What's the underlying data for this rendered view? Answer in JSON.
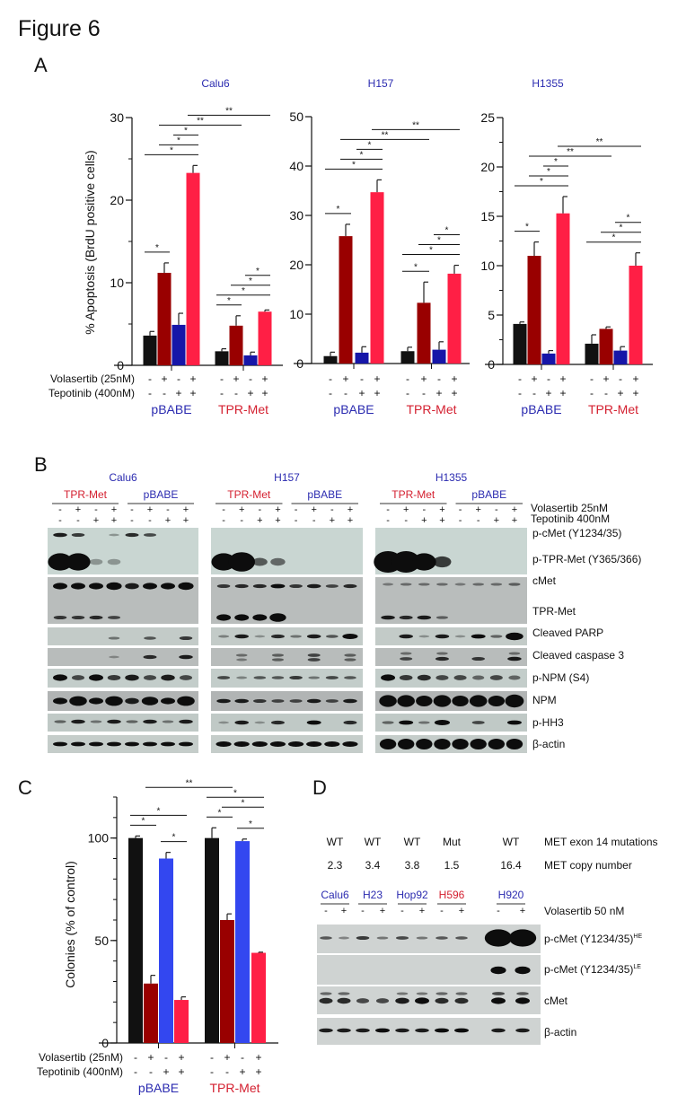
{
  "figure_title": "Figure 6",
  "panel_labels": {
    "A": "A",
    "B": "B",
    "C": "C",
    "D": "D"
  },
  "colors": {
    "black": "#111111",
    "darkred": "#990000",
    "blue": "#1616a8",
    "red": "#ff1f45",
    "blue_c": "#3347f0",
    "label_blue": "#2b2bb0",
    "label_red": "#d42030"
  },
  "treatments": {
    "volasertib_label": "Volasertib (25nM)",
    "tepotinib_label": "Tepotinib (400nM)",
    "volasertib": [
      "-",
      "+",
      "-",
      "+"
    ],
    "tepotinib": [
      "-",
      "-",
      "+",
      "+"
    ]
  },
  "chart_data": [
    {
      "type": "bar",
      "panel": "A",
      "title": "Calu6",
      "ylabel": "% Apoptosis (BrdU positive cells)",
      "ylim": [
        0,
        30
      ],
      "yticks": [
        0,
        10,
        20,
        30
      ],
      "minor_step": 5,
      "groups": [
        "pBABE",
        "TPR-Met"
      ],
      "values": [
        [
          3.6,
          11.2,
          4.9,
          23.3
        ],
        [
          1.7,
          4.8,
          1.2,
          6.5
        ]
      ],
      "errors": [
        [
          0.5,
          1.2,
          1.4,
          0.9
        ],
        [
          0.3,
          1.2,
          0.4,
          0.2
        ]
      ],
      "annotations": [
        {
          "from": 0,
          "to": 1,
          "label": "*"
        },
        {
          "from": 0,
          "to": 3,
          "label": "*"
        },
        {
          "from": 1,
          "to": 3,
          "label": "*"
        },
        {
          "from": 2,
          "to": 3,
          "label": "*"
        },
        {
          "from": 4,
          "to": 5,
          "label": "*"
        },
        {
          "from": 4,
          "to": 7,
          "label": "*"
        },
        {
          "from": 5,
          "to": 7,
          "label": "*"
        },
        {
          "from": 6,
          "to": 7,
          "label": "*"
        },
        {
          "from": 1,
          "to": 5,
          "label": "**"
        },
        {
          "from": 3,
          "to": 7,
          "label": "**"
        }
      ]
    },
    {
      "type": "bar",
      "panel": "A",
      "title": "H157",
      "ylabel": "",
      "ylim": [
        0,
        50
      ],
      "yticks": [
        0,
        10,
        20,
        30,
        40,
        50
      ],
      "minor_step": 10,
      "groups": [
        "pBABE",
        "TPR-Met"
      ],
      "values": [
        [
          1.5,
          25.8,
          2.2,
          34.7
        ],
        [
          2.5,
          12.3,
          2.8,
          18.2
        ]
      ],
      "errors": [
        [
          0.8,
          2.4,
          1.2,
          2.5
        ],
        [
          0.8,
          4.2,
          1.6,
          1.7
        ]
      ],
      "annotations": [
        {
          "from": 0,
          "to": 1,
          "label": "*"
        },
        {
          "from": 0,
          "to": 3,
          "label": "*"
        },
        {
          "from": 1,
          "to": 3,
          "label": "*"
        },
        {
          "from": 2,
          "to": 3,
          "label": "*"
        },
        {
          "from": 4,
          "to": 5,
          "label": "*"
        },
        {
          "from": 4,
          "to": 7,
          "label": "*"
        },
        {
          "from": 5,
          "to": 7,
          "label": "*"
        },
        {
          "from": 6,
          "to": 7,
          "label": "*"
        },
        {
          "from": 1,
          "to": 5,
          "label": "**"
        },
        {
          "from": 3,
          "to": 7,
          "label": "**"
        }
      ]
    },
    {
      "type": "bar",
      "panel": "A",
      "title": "H1355",
      "ylabel": "",
      "ylim": [
        0,
        25
      ],
      "yticks": [
        0,
        5,
        10,
        15,
        20,
        25
      ],
      "minor_step": 2.5,
      "groups": [
        "pBABE",
        "TPR-Met"
      ],
      "values": [
        [
          4.1,
          11.0,
          1.1,
          15.3
        ],
        [
          2.1,
          3.6,
          1.4,
          10.0
        ]
      ],
      "errors": [
        [
          0.2,
          1.4,
          0.3,
          1.7
        ],
        [
          0.9,
          0.2,
          0.4,
          1.3
        ]
      ],
      "annotations": [
        {
          "from": 0,
          "to": 1,
          "label": "*"
        },
        {
          "from": 0,
          "to": 3,
          "label": "*"
        },
        {
          "from": 1,
          "to": 3,
          "label": "*"
        },
        {
          "from": 2,
          "to": 3,
          "label": "*"
        },
        {
          "from": 4,
          "to": 7,
          "label": "*"
        },
        {
          "from": 5,
          "to": 7,
          "label": "*"
        },
        {
          "from": 6,
          "to": 7,
          "label": "*"
        },
        {
          "from": 1,
          "to": 5,
          "label": "**"
        },
        {
          "from": 3,
          "to": 7,
          "label": "**"
        }
      ]
    },
    {
      "type": "bar",
      "panel": "C",
      "title": "",
      "ylabel": "Colonies (% of control)",
      "ylim": [
        0,
        120
      ],
      "yticks": [
        0,
        50,
        100
      ],
      "minor_step": 10,
      "groups": [
        "pBABE",
        "TPR-Met"
      ],
      "values": [
        [
          100,
          29,
          90,
          21
        ],
        [
          100,
          60,
          98.5,
          44
        ]
      ],
      "errors": [
        [
          1,
          4,
          3,
          1.5
        ],
        [
          5,
          3,
          1,
          0.3
        ]
      ],
      "annotations": [
        {
          "from": 0,
          "to": 1,
          "label": "*"
        },
        {
          "from": 2,
          "to": 3,
          "label": "*"
        },
        {
          "from": 0,
          "to": 3,
          "label": "*"
        },
        {
          "from": 4,
          "to": 5,
          "label": "*"
        },
        {
          "from": 6,
          "to": 7,
          "label": "*"
        },
        {
          "from": 5,
          "to": 7,
          "label": "*"
        },
        {
          "from": 4,
          "to": 7,
          "label": "*"
        },
        {
          "from": 1,
          "to": 5,
          "label": "**"
        }
      ]
    }
  ],
  "blot_B": {
    "cell_lines": [
      {
        "name": "Calu6",
        "groups": [
          "TPR-Met",
          "pBABE"
        ]
      },
      {
        "name": "H157",
        "groups": [
          "TPR-Met",
          "pBABE"
        ]
      },
      {
        "name": "H1355",
        "groups": [
          "TPR-Met",
          "pBABE"
        ]
      }
    ],
    "volasertib": [
      "-",
      "+",
      "-",
      "+",
      "-",
      "+",
      "-",
      "+"
    ],
    "tepotinib": [
      "-",
      "-",
      "+",
      "+",
      "-",
      "-",
      "+",
      "+"
    ],
    "treatment_labels": [
      "Volasertib 25nM",
      "Tepotinib 400nM"
    ],
    "row_labels": [
      "p-cMet (Y1234/35)",
      "p-TPR-Met (Y365/366)",
      "cMet",
      "TPR-Met",
      "Cleaved PARP",
      "Cleaved caspase 3",
      "p-NPM (S4)",
      "NPM",
      "p-HH3",
      "β-actin"
    ]
  },
  "blot_D": {
    "mutation_label": "MET exon 14 mutations",
    "mutations": [
      "WT",
      "WT",
      "WT",
      "Mut",
      "WT"
    ],
    "copy_label": "MET copy number",
    "copy_numbers": [
      "2.3",
      "3.4",
      "3.8",
      "1.5",
      "16.4"
    ],
    "cell_lines": [
      "Calu6",
      "H23",
      "Hop92",
      "H596",
      "H920"
    ],
    "signs": [
      "-",
      "+"
    ],
    "treatment_label": "Volasertib 50 nM",
    "row_labels": [
      {
        "main": "p-cMet (Y1234/35)",
        "sup": "HE"
      },
      {
        "main": "p-cMet (Y1234/35)",
        "sup": "LE"
      },
      {
        "main": "cMet",
        "sup": ""
      },
      {
        "main": "β-actin",
        "sup": ""
      }
    ]
  }
}
